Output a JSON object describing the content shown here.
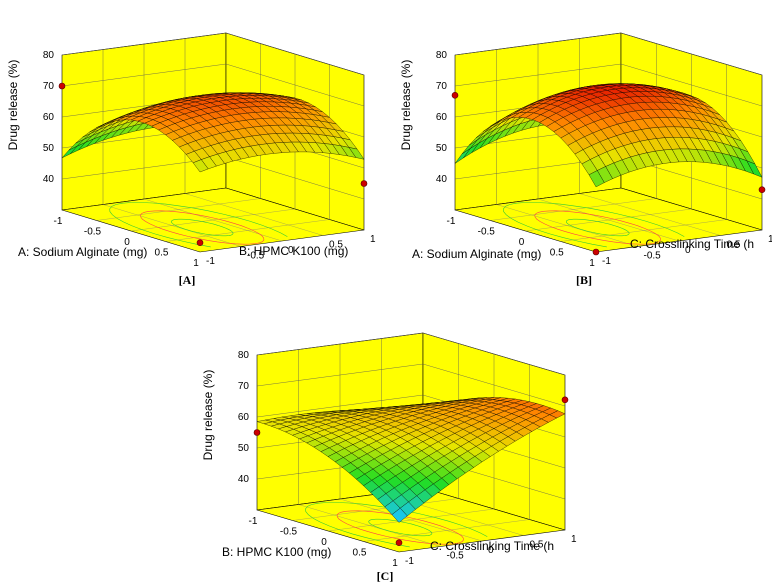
{
  "chart_data": [
    {
      "type": "surface3d",
      "panel_label": "[A]",
      "xlabel": "A: Sodium Alginate (mg)",
      "ylabel": "B: HPMC K100 (mg)",
      "zlabel": "Drug release (%)",
      "x_ticks": [
        "-1",
        "-0.5",
        "0",
        "0.5",
        "1"
      ],
      "y_ticks": [
        "-1",
        "-0.5",
        "0",
        "0.5",
        "1"
      ],
      "z_ticks": [
        "40",
        "50",
        "60",
        "70",
        "80"
      ],
      "xlim": [
        -1,
        1
      ],
      "ylim": [
        -1,
        1
      ],
      "zlim": [
        30,
        80
      ],
      "colormap": [
        "#1f3fe0",
        "#19c8e6",
        "#22dd22",
        "#e6e600",
        "#ff8800",
        "#e00000"
      ],
      "wall_color": "#ffff00",
      "corner_points": [
        {
          "x": -1,
          "y": -1,
          "z": 70.0
        },
        {
          "x": 1,
          "y": -1,
          "z": 33.0
        },
        {
          "x": 1,
          "y": 1,
          "z": 45.0
        }
      ],
      "model": {
        "b0": 70.0,
        "a1": 3.0,
        "a2": 0,
        "a11": -14.5,
        "a22": -4.2,
        "a12": -1.5
      }
    },
    {
      "type": "surface3d",
      "panel_label": "[B]",
      "xlabel": "A: Sodium Alginate (mg)",
      "ylabel": "C: Crosslinking Time (h",
      "zlabel": "Drug release (%)",
      "x_ticks": [
        "-1",
        "-0.5",
        "0",
        "0.5",
        "1"
      ],
      "y_ticks": [
        "-1",
        "-0.5",
        "0",
        "0.5",
        "1"
      ],
      "z_ticks": [
        "40",
        "50",
        "60",
        "70",
        "80"
      ],
      "xlim": [
        -1,
        1
      ],
      "ylim": [
        -1,
        1
      ],
      "zlim": [
        30,
        80
      ],
      "colormap": [
        "#1f3fe0",
        "#19c8e6",
        "#22dd22",
        "#e6e600",
        "#ff8800",
        "#e00000"
      ],
      "wall_color": "#ffff00",
      "corner_points": [
        {
          "x": -1,
          "y": -1,
          "z": 67.0
        },
        {
          "x": 1,
          "y": -1,
          "z": 30.0
        },
        {
          "x": 1,
          "y": 1,
          "z": 43.0
        }
      ],
      "model": {
        "b0": 73.0,
        "a1": 1.0,
        "a2": 0,
        "a11": -18.5,
        "a22": -6.5,
        "a12": -2.0
      }
    },
    {
      "type": "surface3d",
      "panel_label": "[C]",
      "xlabel": "B: HPMC K100 (mg)",
      "ylabel": "C: Crosslinking Time (h",
      "zlabel": "Drug release (%)",
      "x_ticks": [
        "-1",
        "-0.5",
        "0",
        "0.5",
        "1"
      ],
      "y_ticks": [
        "-1",
        "-0.5",
        "0",
        "0.5",
        "1"
      ],
      "z_ticks": [
        "40",
        "50",
        "60",
        "70",
        "80"
      ],
      "xlim": [
        -1,
        1
      ],
      "ylim": [
        -1,
        1
      ],
      "zlim": [
        30,
        80
      ],
      "colormap": [
        "#1f3fe0",
        "#19c8e6",
        "#22dd22",
        "#e6e600",
        "#ff8800",
        "#e00000"
      ],
      "wall_color": "#ffff00",
      "corner_points": [
        {
          "x": -1,
          "y": -1,
          "z": 55.0
        },
        {
          "x": 1,
          "y": -1,
          "z": 33.0
        },
        {
          "x": 1,
          "y": 1,
          "z": 72.0
        }
      ],
      "model": {
        "b0": 62.0,
        "a1": -1.5,
        "a2": 6.0,
        "a11": -5.0,
        "a22": -2.0,
        "a12": 8.0
      }
    }
  ]
}
